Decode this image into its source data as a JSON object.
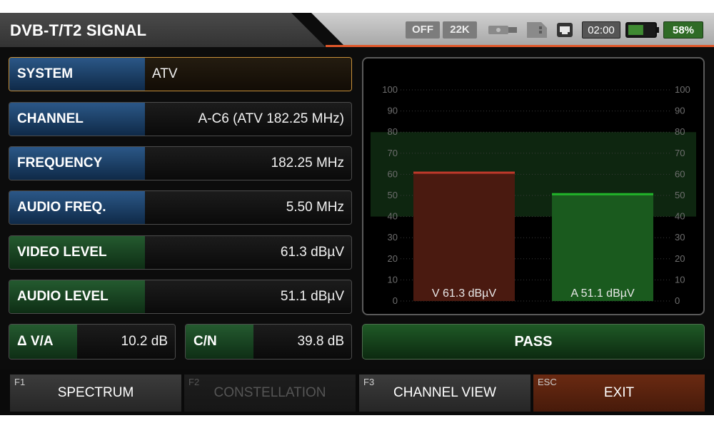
{
  "header": {
    "title": "DVB-T/T2 SIGNAL",
    "status": {
      "lnb_power": "OFF",
      "tone": "22K",
      "time": "02:00",
      "battery_percent": "58%",
      "battery_level": 0.58,
      "icons": [
        "usb-icon",
        "sd-card-icon",
        "lan-icon",
        "battery-icon"
      ]
    }
  },
  "fields": {
    "system": {
      "label": "SYSTEM",
      "value": "ATV"
    },
    "channel": {
      "label": "CHANNEL",
      "value": "A-C6 (ATV 182.25 MHz)"
    },
    "frequency": {
      "label": "FREQUENCY",
      "value": "182.25 MHz"
    },
    "audio_freq": {
      "label": "AUDIO FREQ.",
      "value": "5.50 MHz"
    },
    "video_level": {
      "label": "VIDEO LEVEL",
      "value": "61.3 dBµV"
    },
    "audio_level": {
      "label": "AUDIO LEVEL",
      "value": "51.1 dBµV"
    },
    "delta_va": {
      "label": "Δ V/A",
      "value": "10.2 dB"
    },
    "cn": {
      "label": "C/N",
      "value": "39.8 dB"
    }
  },
  "chart_data": {
    "type": "bar",
    "categories": [
      "V",
      "A"
    ],
    "values": [
      61.3,
      51.1
    ],
    "bar_labels": [
      "V 61.3 dBµV",
      "A 51.1 dBµV"
    ],
    "ylim": [
      0,
      100
    ],
    "y_ticks": [
      0,
      10,
      20,
      30,
      40,
      50,
      60,
      70,
      80,
      90,
      100
    ],
    "y_tick_labels": [
      "0",
      "10",
      "20",
      "30",
      "40",
      "50",
      "60",
      "70",
      "80",
      "90",
      "100"
    ],
    "acceptable_band": [
      40,
      80
    ],
    "grid": true,
    "colors": {
      "V": "#c0392b",
      "A": "#22b52a",
      "band": "#0f2a12"
    }
  },
  "result": "PASS",
  "function_keys": [
    {
      "code": "F1",
      "label": "SPECTRUM",
      "enabled": true
    },
    {
      "code": "F2",
      "label": "CONSTELLATION",
      "enabled": false
    },
    {
      "code": "F3",
      "label": "CHANNEL VIEW",
      "enabled": true
    },
    {
      "code": "ESC",
      "label": "EXIT",
      "enabled": true
    }
  ]
}
